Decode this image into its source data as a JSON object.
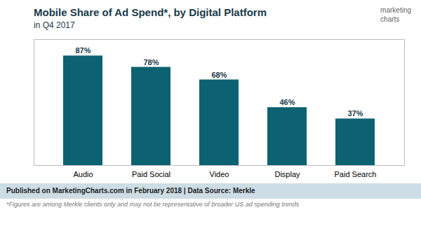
{
  "chart_data": {
    "type": "bar",
    "title": "Mobile Share of Ad Spend*, by Digital Platform",
    "subtitle": "in Q4 2017",
    "categories": [
      "Audio",
      "Paid Social",
      "Video",
      "Display",
      "Paid Search"
    ],
    "values": [
      87,
      78,
      68,
      46,
      37
    ],
    "value_labels": [
      "87%",
      "78%",
      "68%",
      "46%",
      "37%"
    ],
    "data_labels": true,
    "color": "#0d6272",
    "ylim": [
      0,
      100
    ],
    "yticks": [],
    "tick_labels": "x",
    "grid": false,
    "annotations": [
      "marketing",
      "charts",
      "Published on MarketingCharts.com in February 2018 | Data Source: Merkle",
      "*Figures are among Merkle clients only and may not be representative of broader US ad spending trends"
    ]
  }
}
